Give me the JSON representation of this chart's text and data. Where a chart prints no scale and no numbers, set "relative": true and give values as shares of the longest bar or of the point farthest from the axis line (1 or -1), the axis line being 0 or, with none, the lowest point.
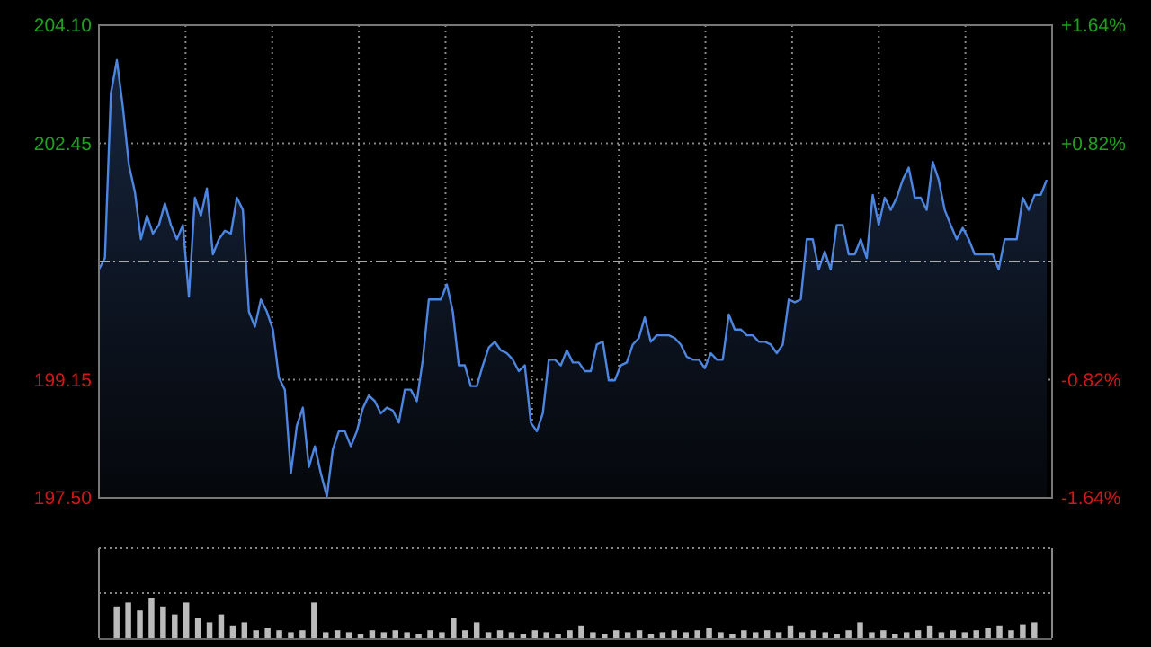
{
  "chart_data": [
    {
      "type": "area",
      "color": "#4d86e0",
      "grid": true,
      "ylim": [
        197.5,
        204.1
      ],
      "yticks": [
        {
          "value": 197.5,
          "label": "197.50"
        },
        {
          "value": 199.15,
          "label": "199.15"
        },
        {
          "value": 202.45,
          "label": "202.45"
        },
        {
          "value": 204.1,
          "label": "204.10"
        }
      ],
      "y2lim": [
        -1.64,
        1.64
      ],
      "y2ticks": [
        {
          "value": -1.64,
          "label": "-1.64%"
        },
        {
          "value": -0.82,
          "label": "-0.82%"
        },
        {
          "value": 0.82,
          "label": "+0.82%"
        },
        {
          "value": 1.64,
          "label": "+1.64%"
        }
      ],
      "ref_lines": [
        {
          "axis": "y",
          "value": 200.8,
          "line_style": "dashed",
          "color": "#aaaaaa"
        }
      ],
      "categories": [
        null,
        null,
        null,
        null,
        null,
        null,
        null,
        null,
        null,
        null,
        null,
        null,
        null,
        null,
        null,
        null,
        null,
        null,
        null,
        null,
        null,
        null,
        null,
        null,
        null,
        null,
        null,
        null,
        null,
        null,
        null,
        null,
        null,
        null,
        null,
        null,
        null,
        null,
        null,
        null,
        null,
        null,
        null,
        null,
        null,
        null,
        null,
        null,
        null,
        null,
        null,
        null,
        null,
        null,
        null,
        null,
        null,
        null,
        null,
        null,
        null,
        null,
        null,
        null,
        null,
        null,
        null,
        null,
        null,
        null,
        null,
        null,
        null,
        null,
        null,
        null,
        null,
        null,
        null,
        null,
        null,
        null,
        null,
        null,
        null,
        null,
        null,
        null,
        null,
        null,
        null,
        null,
        null,
        null,
        null,
        null,
        null,
        null,
        null,
        null,
        null,
        null,
        null,
        null,
        null,
        null,
        null,
        null,
        null,
        null,
        null,
        null,
        null,
        null,
        null,
        null,
        null,
        null,
        null,
        null,
        null,
        null,
        null,
        null,
        null,
        null,
        null,
        null,
        null,
        null,
        null,
        null,
        null,
        null,
        null,
        null,
        null,
        null,
        null,
        null,
        null,
        null,
        null,
        null,
        null,
        null,
        null,
        null,
        null,
        null,
        null,
        null,
        null,
        null,
        null,
        null,
        null,
        null,
        null
      ],
      "values": [
        200.69,
        200.85,
        203.15,
        203.61,
        202.95,
        202.15,
        201.77,
        201.11,
        201.44,
        201.19,
        201.31,
        201.61,
        201.31,
        201.11,
        201.31,
        200.31,
        201.69,
        201.44,
        201.82,
        200.9,
        201.11,
        201.23,
        201.19,
        201.69,
        201.52,
        200.1,
        199.89,
        200.27,
        200.1,
        199.85,
        199.18,
        199.01,
        197.84,
        198.51,
        198.76,
        197.93,
        198.22,
        197.84,
        197.52,
        198.18,
        198.43,
        198.43,
        198.22,
        198.43,
        198.75,
        198.93,
        198.85,
        198.68,
        198.76,
        198.72,
        198.55,
        199.01,
        199.01,
        198.85,
        199.43,
        200.27,
        200.27,
        200.27,
        200.48,
        200.1,
        199.35,
        199.35,
        199.06,
        199.06,
        199.35,
        199.6,
        199.68,
        199.56,
        199.52,
        199.43,
        199.27,
        199.35,
        198.55,
        198.43,
        198.68,
        199.43,
        199.43,
        199.35,
        199.56,
        199.39,
        199.39,
        199.27,
        199.27,
        199.64,
        199.68,
        199.14,
        199.14,
        199.35,
        199.39,
        199.64,
        199.73,
        200.02,
        199.68,
        199.77,
        199.77,
        199.77,
        199.73,
        199.64,
        199.47,
        199.43,
        199.43,
        199.31,
        199.52,
        199.43,
        199.43,
        200.06,
        199.85,
        199.85,
        199.77,
        199.77,
        199.68,
        199.68,
        199.64,
        199.52,
        199.64,
        200.27,
        200.23,
        200.27,
        201.11,
        201.11,
        200.69,
        200.94,
        200.69,
        201.31,
        201.31,
        200.9,
        200.9,
        201.11,
        200.85,
        201.73,
        201.31,
        201.69,
        201.52,
        201.69,
        201.94,
        202.11,
        201.69,
        201.69,
        201.52,
        202.19,
        201.94,
        201.52,
        201.31,
        201.11,
        201.27,
        201.11,
        200.9,
        200.9,
        200.9,
        200.9,
        200.69,
        201.11,
        201.11,
        201.11,
        201.69,
        201.52,
        201.73,
        201.73,
        201.94
      ]
    },
    {
      "type": "bar",
      "relative": true,
      "color": "#bbbbbb",
      "categories": [
        null,
        null,
        null,
        null,
        null,
        null,
        null,
        null,
        null,
        null,
        null,
        null,
        null,
        null,
        null,
        null,
        null,
        null,
        null,
        null,
        null,
        null,
        null,
        null,
        null,
        null,
        null,
        null,
        null,
        null,
        null,
        null,
        null,
        null,
        null,
        null,
        null,
        null,
        null,
        null,
        null,
        null,
        null,
        null,
        null,
        null,
        null,
        null,
        null,
        null,
        null,
        null,
        null,
        null,
        null,
        null,
        null,
        null,
        null,
        null,
        null,
        null,
        null,
        null,
        null,
        null,
        null,
        null,
        null,
        null,
        null,
        null,
        null,
        null,
        null,
        null,
        null,
        null,
        null,
        null
      ],
      "values": [
        0.8,
        0.9,
        0.7,
        1,
        0.8,
        0.6,
        0.9,
        0.5,
        0.4,
        0.6,
        0.3,
        0.4,
        0.2,
        0.25,
        0.2,
        0.15,
        0.2,
        0.9,
        0.15,
        0.2,
        0.15,
        0.1,
        0.2,
        0.15,
        0.2,
        0.15,
        0.1,
        0.2,
        0.15,
        0.5,
        0.2,
        0.4,
        0.15,
        0.2,
        0.15,
        0.1,
        0.2,
        0.15,
        0.1,
        0.2,
        0.3,
        0.15,
        0.1,
        0.2,
        0.15,
        0.2,
        0.1,
        0.15,
        0.2,
        0.15,
        0.2,
        0.25,
        0.15,
        0.1,
        0.2,
        0.15,
        0.2,
        0.15,
        0.3,
        0.15,
        0.2,
        0.15,
        0.1,
        0.2,
        0.4,
        0.15,
        0.2,
        0.1,
        0.15,
        0.2,
        0.3,
        0.15,
        0.2,
        0.15,
        0.2,
        0.25,
        0.3,
        0.2,
        0.35,
        0.4
      ]
    }
  ]
}
